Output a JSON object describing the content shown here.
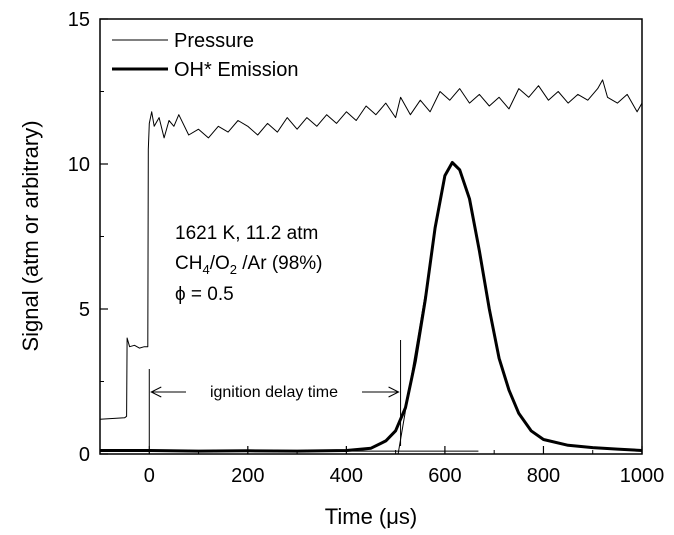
{
  "chart_data": {
    "type": "line",
    "title": "",
    "xlabel": "Time (μs)",
    "ylabel": "Signal (atm or arbitrary)",
    "xlim": [
      -100,
      1000
    ],
    "ylim": [
      0,
      15
    ],
    "x_ticks": [
      0,
      200,
      400,
      600,
      800,
      1000
    ],
    "x_tick_labels": [
      "0",
      "200",
      "400",
      "600",
      "800",
      "1000"
    ],
    "y_ticks": [
      0,
      5,
      10,
      15
    ],
    "y_tick_labels": [
      "0",
      "5",
      "10",
      "15"
    ],
    "grid": false,
    "legend_position": "top-left",
    "series": [
      {
        "name": "Pressure",
        "style": "thin",
        "color": "#000000",
        "points": [
          [
            -100,
            1.2
          ],
          [
            -50,
            1.25
          ],
          [
            -46,
            1.3
          ],
          [
            -45,
            4.0
          ],
          [
            -40,
            3.7
          ],
          [
            -30,
            3.75
          ],
          [
            -20,
            3.65
          ],
          [
            -10,
            3.7
          ],
          [
            -3,
            3.7
          ],
          [
            -2,
            10.5
          ],
          [
            0,
            11.4
          ],
          [
            5,
            11.8
          ],
          [
            10,
            11.3
          ],
          [
            20,
            11.6
          ],
          [
            30,
            10.9
          ],
          [
            40,
            11.5
          ],
          [
            50,
            11.3
          ],
          [
            60,
            11.7
          ],
          [
            80,
            11.0
          ],
          [
            100,
            11.2
          ],
          [
            120,
            10.9
          ],
          [
            140,
            11.3
          ],
          [
            160,
            11.1
          ],
          [
            180,
            11.5
          ],
          [
            200,
            11.3
          ],
          [
            220,
            11.0
          ],
          [
            240,
            11.4
          ],
          [
            260,
            11.1
          ],
          [
            280,
            11.6
          ],
          [
            300,
            11.2
          ],
          [
            320,
            11.6
          ],
          [
            340,
            11.3
          ],
          [
            360,
            11.7
          ],
          [
            380,
            11.4
          ],
          [
            400,
            11.8
          ],
          [
            420,
            11.5
          ],
          [
            440,
            12.0
          ],
          [
            460,
            11.7
          ],
          [
            480,
            12.1
          ],
          [
            500,
            11.6
          ],
          [
            510,
            12.3
          ],
          [
            530,
            11.7
          ],
          [
            550,
            12.2
          ],
          [
            570,
            11.8
          ],
          [
            590,
            12.5
          ],
          [
            610,
            12.2
          ],
          [
            630,
            12.6
          ],
          [
            650,
            12.1
          ],
          [
            670,
            12.4
          ],
          [
            690,
            12.0
          ],
          [
            710,
            12.3
          ],
          [
            730,
            11.9
          ],
          [
            750,
            12.6
          ],
          [
            770,
            12.3
          ],
          [
            790,
            12.7
          ],
          [
            810,
            12.2
          ],
          [
            830,
            12.5
          ],
          [
            850,
            12.1
          ],
          [
            870,
            12.4
          ],
          [
            890,
            12.2
          ],
          [
            910,
            12.6
          ],
          [
            920,
            12.9
          ],
          [
            930,
            12.3
          ],
          [
            950,
            12.1
          ],
          [
            970,
            12.4
          ],
          [
            990,
            11.8
          ],
          [
            1000,
            12.1
          ]
        ]
      },
      {
        "name": "OH* Emission",
        "style": "thick",
        "color": "#000000",
        "points": [
          [
            -100,
            0.12
          ],
          [
            0,
            0.12
          ],
          [
            100,
            0.1
          ],
          [
            200,
            0.11
          ],
          [
            300,
            0.1
          ],
          [
            400,
            0.12
          ],
          [
            450,
            0.2
          ],
          [
            480,
            0.45
          ],
          [
            500,
            0.8
          ],
          [
            520,
            1.6
          ],
          [
            540,
            3.2
          ],
          [
            560,
            5.3
          ],
          [
            580,
            7.8
          ],
          [
            600,
            9.6
          ],
          [
            615,
            10.05
          ],
          [
            630,
            9.8
          ],
          [
            650,
            8.8
          ],
          [
            670,
            7.0
          ],
          [
            690,
            5.0
          ],
          [
            710,
            3.3
          ],
          [
            730,
            2.2
          ],
          [
            750,
            1.4
          ],
          [
            775,
            0.8
          ],
          [
            800,
            0.5
          ],
          [
            850,
            0.3
          ],
          [
            900,
            0.22
          ],
          [
            950,
            0.17
          ],
          [
            1000,
            0.12
          ]
        ]
      }
    ],
    "annotations": {
      "condition_line1": "1621 K, 11.2 atm",
      "condition_ch4": "CH",
      "condition_sub4": "4",
      "condition_o2": "/O",
      "condition_sub2": "2",
      "condition_ar": " /Ar (98%)",
      "condition_phi": "ϕ = 0.5",
      "ignition_label": "ignition delay time",
      "ignition_start_x": 0,
      "ignition_end_x": 510,
      "baseline_y": 0.1,
      "tangent_line": [
        [
          505,
          0
        ],
        [
          560,
          5.5
        ]
      ]
    }
  }
}
